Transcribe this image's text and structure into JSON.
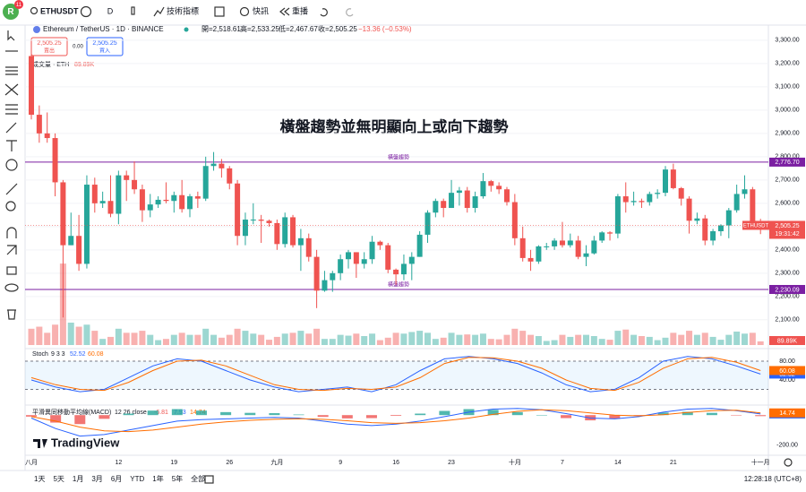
{
  "toolbar": {
    "avatar": "R",
    "badge": "11",
    "symbol": "ETHUSDT",
    "interval": "D",
    "indicators": "技術指標",
    "alerts": "快訊",
    "replay": "重播"
  },
  "legend": {
    "title": "Ethereum / TetherUS · 1D · BINANCE",
    "open": "開=2,518.61",
    "high": "高=2,533.25",
    "low": "低=2,467.67",
    "close": "收=2,505.25",
    "change": "−13.36 (−0.53%)"
  },
  "trade": {
    "sell_price": "2,505.25",
    "sell": "賣出",
    "spread": "0.00",
    "buy_price": "2,505.25",
    "buy": "買入"
  },
  "annotation": "橫盤趨勢並無明顯向上或向下趨勢",
  "watermark": "TradingView",
  "chart_data": [
    {
      "type": "candlestick",
      "symbol_label": "ETHUSDT",
      "last_price_label": "2,505.25",
      "countdown": "19:31:42",
      "colors": {
        "up": "#26a69a",
        "down": "#ef5350"
      },
      "ylim": [
        1980,
        3338
      ],
      "yticks": [
        {
          "value": 3300,
          "label": "3,300.00"
        },
        {
          "value": 3200,
          "label": "3,200.00"
        },
        {
          "value": 3100,
          "label": "3,100.00"
        },
        {
          "value": 3000,
          "label": "3,000.00"
        },
        {
          "value": 2900,
          "label": "2,900.00"
        },
        {
          "value": 2800,
          "label": "2,800.00"
        },
        {
          "value": 2700,
          "label": "2,700.00"
        },
        {
          "value": 2600,
          "label": "2,600.00"
        },
        {
          "value": 2500,
          "label": "2,500.00"
        },
        {
          "value": 2400,
          "label": "2,400.00"
        },
        {
          "value": 2300,
          "label": "2,300.00"
        },
        {
          "value": 2200,
          "label": "2,200.00"
        },
        {
          "value": 2100,
          "label": "2,100.00"
        }
      ],
      "xticks": [
        "八月",
        "12",
        "19",
        "26",
        "九月",
        "9",
        "16",
        "23",
        "十月",
        "7",
        "14",
        "21",
        "十一月"
      ],
      "hlines": [
        {
          "name": "橫盤趨勢",
          "value": 2776.7,
          "label": "2,776.70",
          "color": "#7b1fa2"
        },
        {
          "name": "橫盤趨勢",
          "value": 2230.09,
          "label": "2,230.09",
          "color": "#7b1fa2"
        }
      ],
      "candles": [
        [
          3232,
          3240,
          2960,
          2980
        ],
        [
          2980,
          3020,
          2860,
          2900
        ],
        [
          2900,
          2990,
          2860,
          2880
        ],
        [
          2880,
          2900,
          2630,
          2690
        ],
        [
          2690,
          2700,
          2110,
          2420
        ],
        [
          2420,
          2560,
          2420,
          2460
        ],
        [
          2460,
          2550,
          2310,
          2340
        ],
        [
          2340,
          2720,
          2320,
          2680
        ],
        [
          2680,
          2710,
          2560,
          2600
        ],
        [
          2600,
          2650,
          2580,
          2610
        ],
        [
          2610,
          2720,
          2540,
          2555
        ],
        [
          2555,
          2740,
          2510,
          2720
        ],
        [
          2720,
          2740,
          2610,
          2700
        ],
        [
          2700,
          2780,
          2640,
          2660
        ],
        [
          2660,
          2680,
          2520,
          2570
        ],
        [
          2570,
          2640,
          2540,
          2595
        ],
        [
          2595,
          2630,
          2580,
          2615
        ],
        [
          2615,
          2690,
          2600,
          2610
        ],
        [
          2610,
          2650,
          2560,
          2635
        ],
        [
          2635,
          2700,
          2560,
          2575
        ],
        [
          2575,
          2640,
          2540,
          2630
        ],
        [
          2630,
          2650,
          2580,
          2620
        ],
        [
          2620,
          2800,
          2610,
          2760
        ],
        [
          2760,
          2820,
          2740,
          2770
        ],
        [
          2770,
          2790,
          2710,
          2750
        ],
        [
          2750,
          2760,
          2660,
          2685
        ],
        [
          2685,
          2700,
          2420,
          2460
        ],
        [
          2460,
          2560,
          2420,
          2530
        ],
        [
          2530,
          2600,
          2510,
          2530
        ],
        [
          2530,
          2550,
          2430,
          2525
        ],
        [
          2525,
          2530,
          2500,
          2515
        ],
        [
          2515,
          2530,
          2400,
          2425
        ],
        [
          2425,
          2560,
          2410,
          2540
        ],
        [
          2540,
          2550,
          2410,
          2420
        ],
        [
          2420,
          2490,
          2310,
          2450
        ],
        [
          2450,
          2470,
          2350,
          2370
        ],
        [
          2370,
          2400,
          2150,
          2225
        ],
        [
          2225,
          2310,
          2220,
          2270
        ],
        [
          2270,
          2310,
          2220,
          2300
        ],
        [
          2300,
          2380,
          2270,
          2360
        ],
        [
          2360,
          2400,
          2320,
          2390
        ],
        [
          2390,
          2390,
          2280,
          2340
        ],
        [
          2340,
          2390,
          2320,
          2360
        ],
        [
          2360,
          2460,
          2340,
          2435
        ],
        [
          2435,
          2440,
          2400,
          2420
        ],
        [
          2420,
          2430,
          2300,
          2315
        ],
        [
          2315,
          2320,
          2250,
          2295
        ],
        [
          2295,
          2380,
          2270,
          2340
        ],
        [
          2340,
          2390,
          2270,
          2370
        ],
        [
          2370,
          2480,
          2370,
          2465
        ],
        [
          2465,
          2570,
          2430,
          2560
        ],
        [
          2560,
          2620,
          2540,
          2610
        ],
        [
          2610,
          2620,
          2540,
          2580
        ],
        [
          2580,
          2700,
          2580,
          2645
        ],
        [
          2645,
          2670,
          2590,
          2655
        ],
        [
          2655,
          2670,
          2560,
          2580
        ],
        [
          2580,
          2650,
          2560,
          2630
        ],
        [
          2630,
          2730,
          2620,
          2695
        ],
        [
          2695,
          2700,
          2650,
          2675
        ],
        [
          2675,
          2690,
          2640,
          2660
        ],
        [
          2660,
          2670,
          2590,
          2605
        ],
        [
          2605,
          2640,
          2420,
          2450
        ],
        [
          2450,
          2500,
          2350,
          2365
        ],
        [
          2365,
          2400,
          2310,
          2350
        ],
        [
          2350,
          2420,
          2340,
          2415
        ],
        [
          2415,
          2430,
          2400,
          2415
        ],
        [
          2415,
          2450,
          2400,
          2440
        ],
        [
          2440,
          2520,
          2410,
          2420
        ],
        [
          2420,
          2470,
          2410,
          2440
        ],
        [
          2440,
          2460,
          2360,
          2370
        ],
        [
          2370,
          2420,
          2330,
          2385
        ],
        [
          2385,
          2460,
          2380,
          2440
        ],
        [
          2440,
          2480,
          2430,
          2475
        ],
        [
          2475,
          2480,
          2440,
          2470
        ],
        [
          2470,
          2640,
          2450,
          2630
        ],
        [
          2630,
          2690,
          2560,
          2605
        ],
        [
          2605,
          2650,
          2590,
          2610
        ],
        [
          2610,
          2620,
          2580,
          2605
        ],
        [
          2605,
          2650,
          2590,
          2640
        ],
        [
          2640,
          2660,
          2620,
          2645
        ],
        [
          2645,
          2760,
          2630,
          2745
        ],
        [
          2745,
          2770,
          2660,
          2665
        ],
        [
          2665,
          2670,
          2590,
          2620
        ],
        [
          2620,
          2630,
          2470,
          2525
        ],
        [
          2525,
          2560,
          2510,
          2535
        ],
        [
          2535,
          2550,
          2420,
          2440
        ],
        [
          2440,
          2490,
          2420,
          2480
        ],
        [
          2480,
          2510,
          2460,
          2505
        ],
        [
          2505,
          2580,
          2450,
          2570
        ],
        [
          2570,
          2680,
          2560,
          2640
        ],
        [
          2640,
          2720,
          2620,
          2660
        ],
        [
          2660,
          2670,
          2510,
          2520
        ],
        [
          2518.61,
          2533.25,
          2467.67,
          2505.25
        ]
      ],
      "volume": {
        "name": "成交量 · ETH",
        "last_label": "89.89K",
        "ylim": [
          0,
          7700
        ],
        "values": [
          400,
          450,
          300,
          500,
          2000,
          550,
          450,
          500,
          350,
          150,
          200,
          400,
          300,
          300,
          350,
          250,
          120,
          150,
          250,
          300,
          250,
          250,
          400,
          250,
          180,
          250,
          400,
          350,
          280,
          250,
          130,
          200,
          280,
          300,
          350,
          280,
          400,
          150,
          150,
          250,
          230,
          280,
          220,
          280,
          120,
          180,
          300,
          280,
          320,
          350,
          300,
          150,
          180,
          300,
          250,
          260,
          250,
          280,
          150,
          140,
          250,
          400,
          350,
          250,
          220,
          100,
          120,
          250,
          200,
          250,
          250,
          220,
          150,
          130,
          350,
          380,
          250,
          220,
          200,
          120,
          180,
          300,
          250,
          350,
          250,
          300,
          200,
          130,
          250,
          330,
          280,
          300,
          89.89
        ]
      }
    },
    {
      "type": "line",
      "title": "Stoch",
      "params": "9 3 3",
      "ylim": [
        0,
        100
      ],
      "band": [
        20,
        80
      ],
      "yticks": [
        {
          "value": 80,
          "label": "80.00"
        },
        {
          "value": 40,
          "label": "40.00"
        }
      ],
      "series": [
        {
          "color": "#2962ff",
          "values": [
            40,
            25,
            15,
            20,
            45,
            70,
            85,
            80,
            60,
            40,
            25,
            15,
            20,
            25,
            15,
            30,
            60,
            85,
            90,
            85,
            75,
            55,
            30,
            15,
            20,
            45,
            80,
            90,
            85,
            70,
            52.52
          ]
        },
        {
          "color": "#ff6d00",
          "values": [
            45,
            30,
            20,
            18,
            35,
            60,
            80,
            82,
            70,
            50,
            30,
            20,
            18,
            22,
            20,
            25,
            45,
            75,
            88,
            87,
            80,
            65,
            40,
            22,
            18,
            35,
            65,
            85,
            88,
            78,
            60.08
          ]
        }
      ]
    },
    {
      "type": "macd",
      "title": "平滑異同移動平均線(MACD)",
      "params": "12 26 close",
      "ylim": [
        -256,
        55
      ],
      "yticks": [
        {
          "value": -200,
          "label": "-200.00"
        }
      ],
      "series": [
        {
          "type": "bar",
          "color": "#26a69a",
          "down_color": "#ef5350",
          "values": [
            -10,
            -50,
            -60,
            -25,
            10,
            30,
            40,
            30,
            20,
            15,
            13,
            4,
            -12,
            -22,
            -20,
            -5,
            10,
            28,
            40,
            35,
            20,
            0,
            -20,
            -35,
            -25,
            -5,
            17,
            22,
            15,
            -2,
            -6.81
          ]
        },
        {
          "type": "line",
          "color": "#2962ff",
          "values": [
            -20,
            -90,
            -140,
            -130,
            -100,
            -70,
            -40,
            -30,
            -25,
            -20,
            -15,
            -20,
            -40,
            -60,
            -70,
            -60,
            -40,
            -10,
            20,
            40,
            45,
            35,
            10,
            -20,
            -25,
            -10,
            20,
            40,
            45,
            30,
            7.93
          ]
        },
        {
          "type": "line",
          "color": "#ff6d00",
          "values": [
            -10,
            -40,
            -80,
            -105,
            -110,
            -100,
            -80,
            -60,
            -45,
            -35,
            -28,
            -24,
            -28,
            -38,
            -50,
            -55,
            -50,
            -38,
            -20,
            5,
            25,
            35,
            30,
            15,
            0,
            -5,
            3,
            18,
            30,
            32,
            14.74
          ]
        }
      ]
    }
  ],
  "footer": {
    "ranges": [
      "1天",
      "5天",
      "1月",
      "3月",
      "6月",
      "YTD",
      "1年",
      "5年",
      "全部"
    ],
    "time": "12:28:18 (UTC+8)"
  }
}
